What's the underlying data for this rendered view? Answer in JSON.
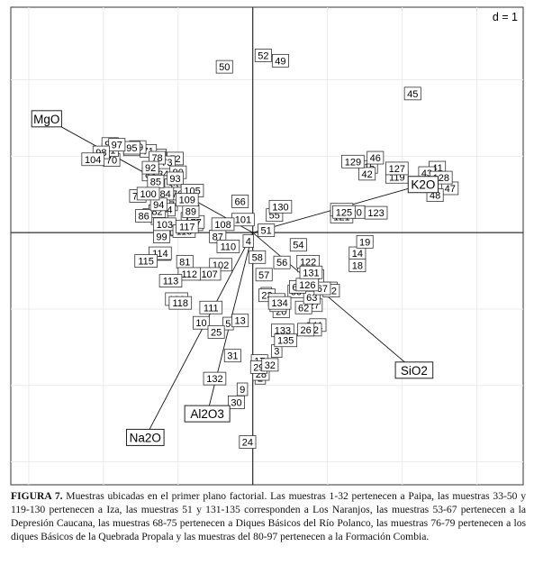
{
  "chart_data": {
    "type": "scatter",
    "scale_label": "d = 1",
    "xlim": [
      -3.24,
      3.62
    ],
    "ylim": [
      -3.3,
      2.95
    ],
    "grid": true,
    "origin_axes": true,
    "points": [
      {
        "label": "1",
        "x": 0.8,
        "y": -1.26
      },
      {
        "label": "2",
        "x": 0.1,
        "y": -1.9
      },
      {
        "label": "3",
        "x": 0.32,
        "y": -1.55
      },
      {
        "label": "4",
        "x": -0.06,
        "y": -0.11
      },
      {
        "label": "5",
        "x": -0.33,
        "y": -1.19
      },
      {
        "label": "6",
        "x": 0.18,
        "y": -0.8
      },
      {
        "label": "7",
        "x": -0.74,
        "y": 0.11
      },
      {
        "label": "8",
        "x": 0.07,
        "y": -1.79
      },
      {
        "label": "9",
        "x": -0.14,
        "y": -2.05
      },
      {
        "label": "10",
        "x": -0.69,
        "y": -1.18
      },
      {
        "label": "11",
        "x": 0.87,
        "y": -1.21
      },
      {
        "label": "12",
        "x": 0.81,
        "y": -1.27
      },
      {
        "label": "13",
        "x": -0.17,
        "y": -1.15
      },
      {
        "label": "14",
        "x": 1.4,
        "y": -0.27
      },
      {
        "label": "15",
        "x": 1.56,
        "y": 0.86
      },
      {
        "label": "16",
        "x": -1.21,
        "y": -0.28
      },
      {
        "label": "17",
        "x": 0.09,
        "y": -1.68
      },
      {
        "label": "18",
        "x": 1.4,
        "y": -0.43
      },
      {
        "label": "19",
        "x": 1.5,
        "y": -0.12
      },
      {
        "label": "20",
        "x": 0.38,
        "y": -1.03
      },
      {
        "label": "21",
        "x": 1.02,
        "y": -0.73
      },
      {
        "label": "22",
        "x": 1.05,
        "y": -0.76
      },
      {
        "label": "23",
        "x": 0.19,
        "y": -0.82
      },
      {
        "label": "24",
        "x": -0.07,
        "y": -2.74
      },
      {
        "label": "25",
        "x": -0.49,
        "y": -1.3
      },
      {
        "label": "26",
        "x": 0.71,
        "y": -1.27
      },
      {
        "label": "27",
        "x": 0.82,
        "y": -0.95
      },
      {
        "label": "28",
        "x": 0.11,
        "y": -1.85
      },
      {
        "label": "29",
        "x": 0.08,
        "y": -1.76
      },
      {
        "label": "30",
        "x": -0.22,
        "y": -2.22
      },
      {
        "label": "31",
        "x": -0.27,
        "y": -1.61
      },
      {
        "label": "32",
        "x": 0.23,
        "y": -1.73
      },
      {
        "label": "33",
        "x": -1.36,
        "y": 0.23
      },
      {
        "label": "34",
        "x": -1.2,
        "y": 0.77
      },
      {
        "label": "35",
        "x": -1.07,
        "y": 0.62
      },
      {
        "label": "36",
        "x": -1.1,
        "y": 0.04
      },
      {
        "label": "37",
        "x": -1.12,
        "y": 0.37
      },
      {
        "label": "38",
        "x": -1.13,
        "y": 0.06
      },
      {
        "label": "39",
        "x": -1.22,
        "y": 0.43
      },
      {
        "label": "40",
        "x": -1.0,
        "y": 0.05
      },
      {
        "label": "41",
        "x": 2.47,
        "y": 0.85
      },
      {
        "label": "42",
        "x": 1.53,
        "y": 0.77
      },
      {
        "label": "43",
        "x": 2.33,
        "y": 0.78
      },
      {
        "label": "44",
        "x": -1.15,
        "y": 0.3
      },
      {
        "label": "45",
        "x": 2.14,
        "y": 1.82
      },
      {
        "label": "46",
        "x": 1.64,
        "y": 0.98
      },
      {
        "label": "47",
        "x": 2.64,
        "y": 0.58
      },
      {
        "label": "48",
        "x": 2.44,
        "y": 0.49
      },
      {
        "label": "49",
        "x": 0.37,
        "y": 2.25
      },
      {
        "label": "50",
        "x": -0.38,
        "y": 2.17
      },
      {
        "label": "51",
        "x": 0.18,
        "y": 0.03
      },
      {
        "label": "52",
        "x": 0.14,
        "y": 2.32
      },
      {
        "label": "53",
        "x": 0.71,
        "y": -0.43
      },
      {
        "label": "54",
        "x": 0.61,
        "y": -0.16
      },
      {
        "label": "55",
        "x": 0.29,
        "y": 0.23
      },
      {
        "label": "56",
        "x": 0.39,
        "y": -0.39
      },
      {
        "label": "57",
        "x": 0.15,
        "y": -0.55
      },
      {
        "label": "58",
        "x": 0.06,
        "y": -0.32
      },
      {
        "label": "59",
        "x": 0.84,
        "y": -0.57
      },
      {
        "label": "60",
        "x": 0.58,
        "y": -0.77
      },
      {
        "label": "61",
        "x": 0.32,
        "y": -0.88
      },
      {
        "label": "62",
        "x": 0.68,
        "y": -0.98
      },
      {
        "label": "63",
        "x": 0.79,
        "y": -0.85
      },
      {
        "label": "64",
        "x": 0.6,
        "y": -0.71
      },
      {
        "label": "65",
        "x": 0.34,
        "y": -0.95
      },
      {
        "label": "66",
        "x": -0.17,
        "y": 0.41
      },
      {
        "label": "67",
        "x": 0.93,
        "y": -0.73
      },
      {
        "label": "68",
        "x": -1.27,
        "y": 1.01
      },
      {
        "label": "69",
        "x": -1.62,
        "y": 1.09
      },
      {
        "label": "70",
        "x": -1.89,
        "y": 0.95
      },
      {
        "label": "71",
        "x": -1.4,
        "y": 1.07
      },
      {
        "label": "72",
        "x": -1.04,
        "y": 0.97
      },
      {
        "label": "73",
        "x": -1.15,
        "y": 0.92
      },
      {
        "label": "74",
        "x": -1.54,
        "y": 0.48
      },
      {
        "label": "75",
        "x": -0.85,
        "y": 0.18
      },
      {
        "label": "76",
        "x": -1.01,
        "y": 0.51
      },
      {
        "label": "77",
        "x": -0.76,
        "y": 0.14
      },
      {
        "label": "78",
        "x": -1.28,
        "y": 0.98
      },
      {
        "label": "79",
        "x": -1.54,
        "y": 1.12
      },
      {
        "label": "80",
        "x": -1.25,
        "y": 0.19
      },
      {
        "label": "81",
        "x": -0.91,
        "y": -0.38
      },
      {
        "label": "82",
        "x": -1.28,
        "y": 0.28
      },
      {
        "label": "83",
        "x": -1.37,
        "y": 0.76
      },
      {
        "label": "84",
        "x": -1.17,
        "y": 0.51
      },
      {
        "label": "85",
        "x": -1.3,
        "y": 0.67
      },
      {
        "label": "86",
        "x": -1.46,
        "y": 0.22
      },
      {
        "label": "87",
        "x": -0.47,
        "y": -0.05
      },
      {
        "label": "88",
        "x": -1.21,
        "y": 0.06
      },
      {
        "label": "89",
        "x": -0.83,
        "y": 0.28
      },
      {
        "label": "90",
        "x": -1.0,
        "y": 0.79
      },
      {
        "label": "91",
        "x": -1.91,
        "y": 1.08
      },
      {
        "label": "92",
        "x": -1.37,
        "y": 0.85
      },
      {
        "label": "93",
        "x": -1.04,
        "y": 0.71
      },
      {
        "label": "94",
        "x": -1.26,
        "y": 0.37
      },
      {
        "label": "95",
        "x": -1.62,
        "y": 1.11
      },
      {
        "label": "96",
        "x": -1.91,
        "y": 1.16
      },
      {
        "label": "97",
        "x": -1.82,
        "y": 1.15
      },
      {
        "label": "98",
        "x": -2.03,
        "y": 1.05
      },
      {
        "label": "99",
        "x": -1.22,
        "y": -0.05
      },
      {
        "label": "100",
        "x": -1.4,
        "y": 0.51
      },
      {
        "label": "101",
        "x": -0.13,
        "y": 0.17
      },
      {
        "label": "102",
        "x": -0.43,
        "y": -0.42
      },
      {
        "label": "103",
        "x": -1.18,
        "y": 0.11
      },
      {
        "label": "104",
        "x": -2.14,
        "y": 0.96
      },
      {
        "label": "105",
        "x": -0.81,
        "y": 0.55
      },
      {
        "label": "106",
        "x": -1.02,
        "y": -0.87
      },
      {
        "label": "107",
        "x": -0.58,
        "y": -0.54
      },
      {
        "label": "108",
        "x": -0.4,
        "y": 0.11
      },
      {
        "label": "109",
        "x": -0.88,
        "y": 0.43
      },
      {
        "label": "110",
        "x": -0.33,
        "y": -0.18
      },
      {
        "label": "111",
        "x": -0.56,
        "y": -0.98
      },
      {
        "label": "112",
        "x": -0.85,
        "y": -0.54
      },
      {
        "label": "113",
        "x": -1.1,
        "y": -0.63
      },
      {
        "label": "114",
        "x": -1.24,
        "y": -0.27
      },
      {
        "label": "115",
        "x": -1.43,
        "y": -0.37
      },
      {
        "label": "116",
        "x": -0.92,
        "y": 0.02
      },
      {
        "label": "117",
        "x": -0.88,
        "y": 0.08
      },
      {
        "label": "118",
        "x": -0.97,
        "y": -0.92
      },
      {
        "label": "119",
        "x": 1.93,
        "y": 0.73
      },
      {
        "label": "120",
        "x": 1.35,
        "y": 0.27
      },
      {
        "label": "121",
        "x": 1.19,
        "y": 0.21
      },
      {
        "label": "122",
        "x": 0.74,
        "y": -0.38
      },
      {
        "label": "123",
        "x": 1.65,
        "y": 0.26
      },
      {
        "label": "124",
        "x": 1.19,
        "y": 0.3
      },
      {
        "label": "125",
        "x": 1.22,
        "y": 0.27
      },
      {
        "label": "126",
        "x": 0.73,
        "y": -0.68
      },
      {
        "label": "127",
        "x": 1.93,
        "y": 0.84
      },
      {
        "label": "128",
        "x": 2.52,
        "y": 0.72
      },
      {
        "label": "129",
        "x": 1.34,
        "y": 0.93
      },
      {
        "label": "130",
        "x": 0.37,
        "y": 0.34
      },
      {
        "label": "131",
        "x": 0.78,
        "y": -0.52
      },
      {
        "label": "132",
        "x": -0.51,
        "y": -1.91
      },
      {
        "label": "133",
        "x": 0.4,
        "y": -1.28
      },
      {
        "label": "134",
        "x": 0.36,
        "y": -0.92
      },
      {
        "label": "135",
        "x": 0.44,
        "y": -1.41
      }
    ],
    "vectors": [
      {
        "label": "MgO",
        "x": -2.76,
        "y": 1.49
      },
      {
        "label": "K2O",
        "x": 2.28,
        "y": 0.63
      },
      {
        "label": "SiO2",
        "x": 2.16,
        "y": -1.8
      },
      {
        "label": "Al2O3",
        "x": -0.61,
        "y": -2.37
      },
      {
        "label": "Na2O",
        "x": -1.44,
        "y": -2.68
      }
    ]
  },
  "caption": {
    "figure_label": "FIGURA 7.",
    "text": " Muestras ubicadas en el primer plano factorial. Las muestras 1-32 pertenecen a Paipa, las muestras 33-50 y 119-130 pertenecen a Iza, las muestras 51 y 131-135 corresponden a Los Naranjos, las muestras 53-67 pertenecen a la Depresión Caucana, las muestras 68-75 pertenecen a Diques Básicos del Río Polanco, las muestras 76-79 pertenecen a los diques Básicos de la Quebrada Propala y las muestras del 80-97 pertenecen a la Formación Combia."
  },
  "colors": {
    "background": "#ffffff",
    "grid": "#ebebeb",
    "axis_line": "#000000",
    "frame": "#333333",
    "label_box": "#ffffff",
    "text": "#000000"
  }
}
